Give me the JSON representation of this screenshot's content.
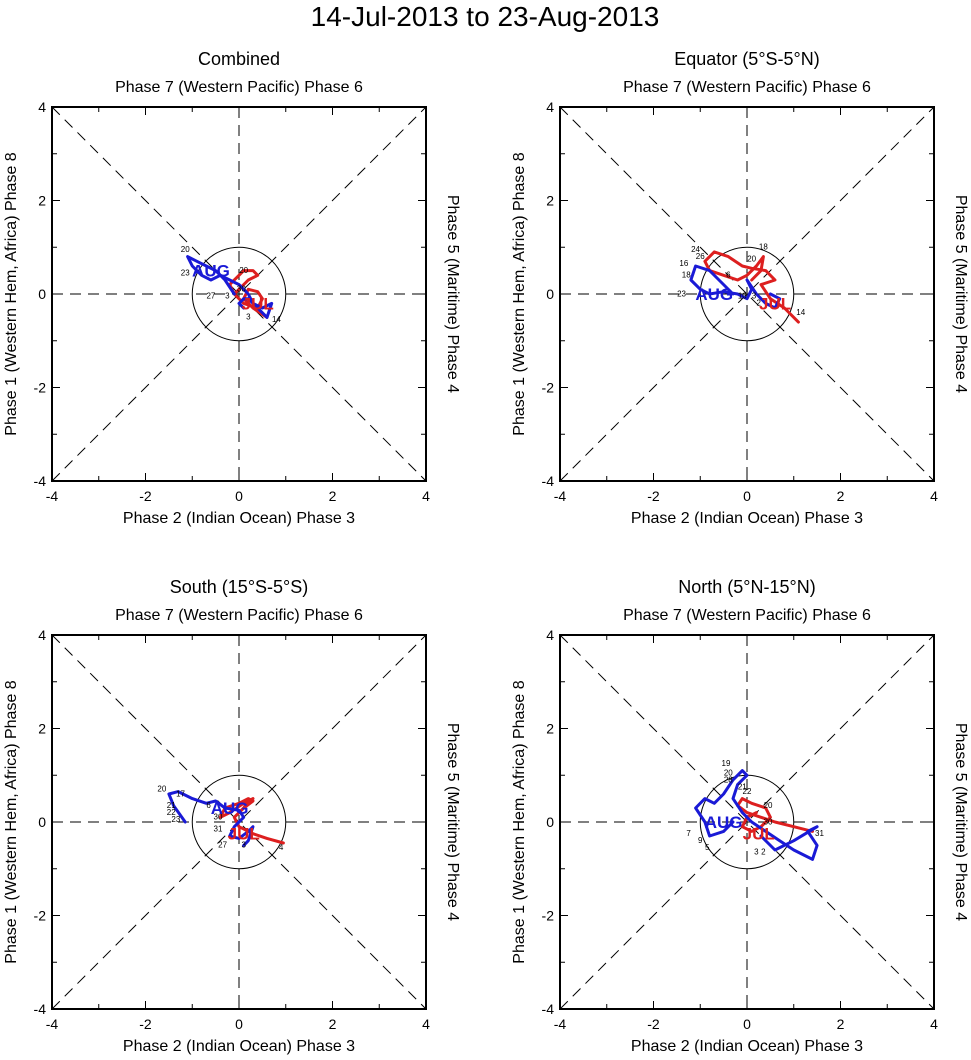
{
  "figure_title": "14-Jul-2013 to 23-Aug-2013",
  "colors": {
    "jul": "#dd1f1f",
    "aug": "#1a1ad6",
    "axes": "#000000"
  },
  "chart_data": [
    {
      "type": "line",
      "title": "Combined",
      "top_label": "Phase 7 (Western Pacific) Phase 6",
      "bottom_label": "Phase 2 (Indian Ocean) Phase 3",
      "left_label": "Phase 1 (Western Hem, Africa) Phase 8",
      "right_label": "Phase 5 (Maritime) Phase 4",
      "xlim": [
        -4,
        4
      ],
      "ylim": [
        -4,
        4
      ],
      "xticks": [
        "-4",
        "-2",
        "0",
        "2",
        "4"
      ],
      "yticks": [
        "-4",
        "-2",
        "0",
        "2",
        "4"
      ],
      "month_labels": [
        {
          "text": "JUL",
          "x": 0.4,
          "y": -0.2,
          "series": "jul"
        },
        {
          "text": "AUG",
          "x": -0.6,
          "y": 0.5,
          "series": "aug"
        }
      ],
      "series": [
        {
          "name": "Jul",
          "color": "jul",
          "x": [
            0.6,
            0.3,
            0.1,
            0.2,
            0.4,
            0.5,
            0.4,
            0.1,
            -0.1,
            -0.2,
            0.0,
            0.1,
            0.2,
            0.3,
            0.4,
            0.2,
            0.0,
            -0.1
          ],
          "y": [
            -0.5,
            -0.3,
            -0.1,
            0.1,
            0.05,
            -0.1,
            -0.3,
            -0.2,
            0.0,
            0.2,
            0.4,
            0.5,
            0.5,
            0.5,
            0.4,
            0.3,
            0.1,
            0.0
          ]
        },
        {
          "name": "Aug",
          "color": "aug",
          "x": [
            -0.1,
            -0.3,
            -0.5,
            -0.7,
            -0.9,
            -1.1,
            -1.0,
            -0.8,
            -0.6,
            -0.4,
            -0.2,
            0.0,
            0.1,
            0.2,
            0.3,
            0.5,
            0.7,
            0.6,
            0.4,
            0.2,
            0.1,
            0.0,
            0.1
          ],
          "y": [
            0.0,
            0.3,
            0.5,
            0.6,
            0.7,
            0.8,
            0.6,
            0.4,
            0.3,
            0.4,
            0.3,
            0.2,
            0.1,
            0.0,
            -0.2,
            -0.3,
            -0.2,
            -0.5,
            -0.3,
            -0.1,
            -0.1,
            -0.2,
            -0.3
          ]
        }
      ],
      "day_labels": [
        {
          "text": "14",
          "x": 0.8,
          "y": -0.6
        },
        {
          "text": "3",
          "x": 0.2,
          "y": -0.55
        },
        {
          "text": "20",
          "x": -1.15,
          "y": 0.9
        },
        {
          "text": "23",
          "x": -1.15,
          "y": 0.4
        },
        {
          "text": "27",
          "x": -0.6,
          "y": -0.1
        },
        {
          "text": "30",
          "x": 0.05,
          "y": 0.05
        },
        {
          "text": "20",
          "x": 0.1,
          "y": 0.45
        },
        {
          "text": "3",
          "x": -0.25,
          "y": -0.1
        }
      ]
    },
    {
      "type": "line",
      "title": "Equator (5°S-5°N)",
      "top_label": "Phase 7 (Western Pacific) Phase 6",
      "bottom_label": "Phase 2 (Indian Ocean) Phase 3",
      "left_label": "Phase 1 (Western Hem, Africa) Phase 8",
      "right_label": "Phase 5 (Maritime) Phase 4",
      "xlim": [
        -4,
        4
      ],
      "ylim": [
        -4,
        4
      ],
      "xticks": [
        "-4",
        "-2",
        "0",
        "2",
        "4"
      ],
      "yticks": [
        "-4",
        "-2",
        "0",
        "2",
        "4"
      ],
      "month_labels": [
        {
          "text": "JUL",
          "x": 0.6,
          "y": -0.2,
          "series": "jul"
        },
        {
          "text": "AUG",
          "x": -0.7,
          "y": 0.0,
          "series": "aug"
        }
      ],
      "series": [
        {
          "name": "Jul",
          "color": "jul",
          "x": [
            1.1,
            0.8,
            0.5,
            0.3,
            0.6,
            0.4,
            0.1,
            -0.1,
            -0.4,
            -0.7,
            -0.9,
            -0.8,
            -0.5,
            -0.2,
            0.0,
            0.2,
            0.35,
            0.3,
            0.1
          ],
          "y": [
            -0.6,
            -0.3,
            -0.1,
            0.2,
            0.3,
            0.5,
            0.55,
            0.6,
            0.8,
            0.9,
            0.7,
            0.5,
            0.4,
            0.3,
            0.4,
            0.6,
            0.8,
            0.5,
            0.3
          ]
        },
        {
          "name": "Aug",
          "color": "aug",
          "x": [
            -0.3,
            -0.6,
            -0.8,
            -1.1,
            -1.2,
            -1.0,
            -0.8,
            -0.5,
            -0.2,
            0.0,
            0.1,
            0.0,
            0.2,
            0.4,
            0.6,
            0.7,
            0.5
          ],
          "y": [
            0.0,
            0.3,
            0.5,
            0.6,
            0.3,
            0.1,
            0.0,
            0.05,
            0.0,
            -0.1,
            0.1,
            0.3,
            0.0,
            -0.2,
            -0.3,
            -0.1,
            0.0
          ]
        }
      ],
      "day_labels": [
        {
          "text": "14",
          "x": 1.15,
          "y": -0.45
        },
        {
          "text": "18",
          "x": 0.35,
          "y": 0.95
        },
        {
          "text": "20",
          "x": 0.1,
          "y": 0.7
        },
        {
          "text": "24",
          "x": -1.1,
          "y": 0.9
        },
        {
          "text": "26",
          "x": -1.0,
          "y": 0.75
        },
        {
          "text": "16",
          "x": -1.35,
          "y": 0.6
        },
        {
          "text": "18",
          "x": -1.3,
          "y": 0.35
        },
        {
          "text": "23",
          "x": -1.4,
          "y": -0.05
        },
        {
          "text": "6",
          "x": -0.4,
          "y": 0.35
        },
        {
          "text": "10",
          "x": -0.1,
          "y": -0.1
        },
        {
          "text": "2",
          "x": 0.25,
          "y": -0.25
        },
        {
          "text": "3",
          "x": 0.15,
          "y": -0.1
        }
      ]
    },
    {
      "type": "line",
      "title": "South (15°S-5°S)",
      "top_label": "Phase 7 (Western Pacific) Phase 6",
      "bottom_label": "Phase 2 (Indian Ocean) Phase 3",
      "left_label": "Phase 1 (Western Hem, Africa) Phase 8",
      "right_label": "Phase 5 (Maritime) Phase 4",
      "xlim": [
        -4,
        4
      ],
      "ylim": [
        -4,
        4
      ],
      "xticks": [
        "-4",
        "-2",
        "0",
        "2",
        "4"
      ],
      "yticks": [
        "-4",
        "-2",
        "0",
        "2",
        "4"
      ],
      "month_labels": [
        {
          "text": "JUL",
          "x": 0.1,
          "y": -0.25,
          "series": "jul"
        },
        {
          "text": "AUG",
          "x": -0.2,
          "y": 0.3,
          "series": "aug"
        }
      ],
      "series": [
        {
          "name": "Jul",
          "color": "jul",
          "x": [
            0.95,
            0.6,
            0.3,
            0.0,
            -0.1,
            0.1,
            0.2,
            0.3,
            0.1,
            -0.2,
            -0.4,
            -0.3,
            0.0,
            0.2,
            0.3,
            0.1
          ],
          "y": [
            -0.45,
            -0.35,
            -0.25,
            -0.1,
            0.1,
            0.3,
            0.45,
            0.5,
            0.4,
            0.2,
            0.1,
            0.3,
            0.4,
            0.5,
            0.45,
            0.3
          ]
        },
        {
          "name": "Aug",
          "color": "aug",
          "x": [
            -1.15,
            -1.4,
            -1.5,
            -1.3,
            -1.0,
            -0.7,
            -0.5,
            -0.3,
            0.0,
            0.1,
            -0.1,
            -0.2,
            0.0,
            0.2,
            0.3,
            0.2,
            0.1
          ],
          "y": [
            0.0,
            0.35,
            0.6,
            0.65,
            0.5,
            0.4,
            0.45,
            0.3,
            0.25,
            0.1,
            -0.1,
            -0.3,
            -0.35,
            -0.2,
            -0.1,
            -0.4,
            -0.5
          ]
        }
      ],
      "day_labels": [
        {
          "text": "20",
          "x": -1.65,
          "y": 0.65
        },
        {
          "text": "17",
          "x": -1.25,
          "y": 0.55
        },
        {
          "text": "21",
          "x": -1.45,
          "y": 0.3
        },
        {
          "text": "22",
          "x": -1.45,
          "y": 0.15
        },
        {
          "text": "23",
          "x": -1.35,
          "y": 0.0
        },
        {
          "text": "6",
          "x": -0.65,
          "y": 0.3
        },
        {
          "text": "30",
          "x": -0.45,
          "y": 0.05
        },
        {
          "text": "31",
          "x": -0.45,
          "y": -0.2
        },
        {
          "text": "27",
          "x": -0.35,
          "y": -0.55
        },
        {
          "text": "3",
          "x": 0.1,
          "y": -0.55
        },
        {
          "text": "4",
          "x": 0.9,
          "y": -0.6
        }
      ]
    },
    {
      "type": "line",
      "title": "North (5°N-15°N)",
      "top_label": "Phase 7 (Western Pacific) Phase 6",
      "bottom_label": "Phase 2 (Indian Ocean) Phase 3",
      "left_label": "Phase 1 (Western Hem, Africa) Phase 8",
      "right_label": "Phase 5 (Maritime) Phase 4",
      "xlim": [
        -4,
        4
      ],
      "ylim": [
        -4,
        4
      ],
      "xticks": [
        "-4",
        "-2",
        "0",
        "2",
        "4"
      ],
      "yticks": [
        "-4",
        "-2",
        "0",
        "2",
        "4"
      ],
      "month_labels": [
        {
          "text": "JUL",
          "x": 0.25,
          "y": -0.25,
          "series": "jul"
        },
        {
          "text": "AUG",
          "x": -0.5,
          "y": 0.0,
          "series": "aug"
        }
      ],
      "series": [
        {
          "name": "Jul",
          "color": "jul",
          "x": [
            1.4,
            1.0,
            0.6,
            0.3,
            0.0,
            -0.2,
            -0.1,
            0.1,
            0.4,
            0.5,
            0.3,
            0.1,
            -0.1,
            0.0,
            0.2
          ],
          "y": [
            -0.2,
            -0.1,
            0.0,
            0.1,
            0.2,
            0.35,
            0.5,
            0.4,
            0.3,
            0.1,
            -0.1,
            -0.2,
            -0.1,
            0.1,
            0.2
          ]
        },
        {
          "name": "Aug",
          "color": "aug",
          "x": [
            -0.3,
            -0.5,
            -0.8,
            -0.9,
            -1.1,
            -0.9,
            -0.7,
            -0.5,
            -0.3,
            -0.1,
            0.0,
            -0.2,
            -0.3,
            -0.1,
            0.1,
            0.4,
            0.7,
            1.0,
            1.4,
            1.5,
            1.3,
            1.5,
            1.0,
            0.6,
            0.3
          ],
          "y": [
            0.0,
            -0.2,
            -0.3,
            0.0,
            0.3,
            0.5,
            0.4,
            0.6,
            0.9,
            1.1,
            1.0,
            0.8,
            0.5,
            0.2,
            0.0,
            -0.2,
            -0.4,
            -0.6,
            -0.8,
            -0.5,
            -0.2,
            -0.1,
            -0.4,
            -0.6,
            -0.3
          ]
        }
      ],
      "day_labels": [
        {
          "text": "19",
          "x": -0.45,
          "y": 1.2
        },
        {
          "text": "20",
          "x": -0.4,
          "y": 1.0
        },
        {
          "text": "28",
          "x": -0.4,
          "y": 0.85
        },
        {
          "text": "21",
          "x": -0.1,
          "y": 0.7
        },
        {
          "text": "22",
          "x": 0.0,
          "y": 0.6
        },
        {
          "text": "20",
          "x": 0.45,
          "y": 0.3
        },
        {
          "text": "30",
          "x": 0.45,
          "y": -0.05
        },
        {
          "text": "7",
          "x": -1.25,
          "y": -0.3
        },
        {
          "text": "9",
          "x": -1.0,
          "y": -0.45
        },
        {
          "text": "5",
          "x": -0.85,
          "y": -0.6
        },
        {
          "text": "3",
          "x": 0.2,
          "y": -0.7
        },
        {
          "text": "2",
          "x": 0.35,
          "y": -0.7
        },
        {
          "text": "31",
          "x": 1.55,
          "y": -0.3
        }
      ]
    }
  ]
}
